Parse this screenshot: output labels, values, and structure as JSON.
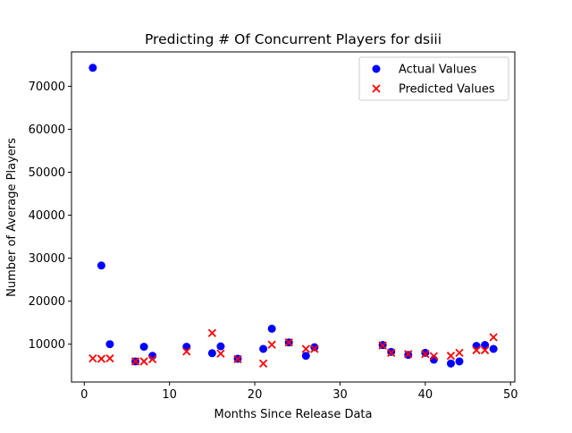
{
  "chart_data": {
    "type": "scatter",
    "title": "Predicting # Of Concurrent Players for dsiii",
    "xlabel": "Months Since Release Data",
    "ylabel": "Number of Average Players",
    "xlim": [
      -1.5,
      50.5
    ],
    "ylim": [
      1200,
      78000
    ],
    "xticks": [
      0,
      10,
      20,
      30,
      40,
      50
    ],
    "yticks": [
      10000,
      20000,
      30000,
      40000,
      50000,
      60000,
      70000
    ],
    "grid": false,
    "legend_position": "top-right",
    "series": [
      {
        "name": "Actual Values",
        "marker": "circle",
        "color": "#0000ff",
        "points": [
          [
            1,
            74300
          ],
          [
            2,
            28300
          ],
          [
            3,
            10000
          ],
          [
            6,
            6000
          ],
          [
            7,
            9400
          ],
          [
            8,
            7300
          ],
          [
            12,
            9400
          ],
          [
            15,
            7900
          ],
          [
            16,
            9500
          ],
          [
            18,
            6600
          ],
          [
            21,
            8900
          ],
          [
            22,
            13600
          ],
          [
            24,
            10400
          ],
          [
            26,
            7300
          ],
          [
            27,
            9300
          ],
          [
            35,
            9800
          ],
          [
            36,
            8200
          ],
          [
            38,
            7500
          ],
          [
            40,
            8000
          ],
          [
            41,
            6400
          ],
          [
            43,
            5500
          ],
          [
            44,
            6000
          ],
          [
            46,
            9600
          ],
          [
            47,
            9800
          ],
          [
            48,
            8900
          ]
        ]
      },
      {
        "name": "Predicted Values",
        "marker": "x",
        "color": "#ff0000",
        "points": [
          [
            1,
            6700
          ],
          [
            2,
            6600
          ],
          [
            3,
            6700
          ],
          [
            6,
            6000
          ],
          [
            7,
            6000
          ],
          [
            8,
            6500
          ],
          [
            12,
            8300
          ],
          [
            15,
            12600
          ],
          [
            16,
            7800
          ],
          [
            18,
            6500
          ],
          [
            21,
            5500
          ],
          [
            22,
            9900
          ],
          [
            24,
            10400
          ],
          [
            26,
            8900
          ],
          [
            27,
            8900
          ],
          [
            35,
            9700
          ],
          [
            36,
            8000
          ],
          [
            38,
            7700
          ],
          [
            40,
            7700
          ],
          [
            41,
            7200
          ],
          [
            43,
            7300
          ],
          [
            44,
            8000
          ],
          [
            46,
            8600
          ],
          [
            47,
            8600
          ],
          [
            48,
            11600
          ]
        ]
      }
    ]
  }
}
